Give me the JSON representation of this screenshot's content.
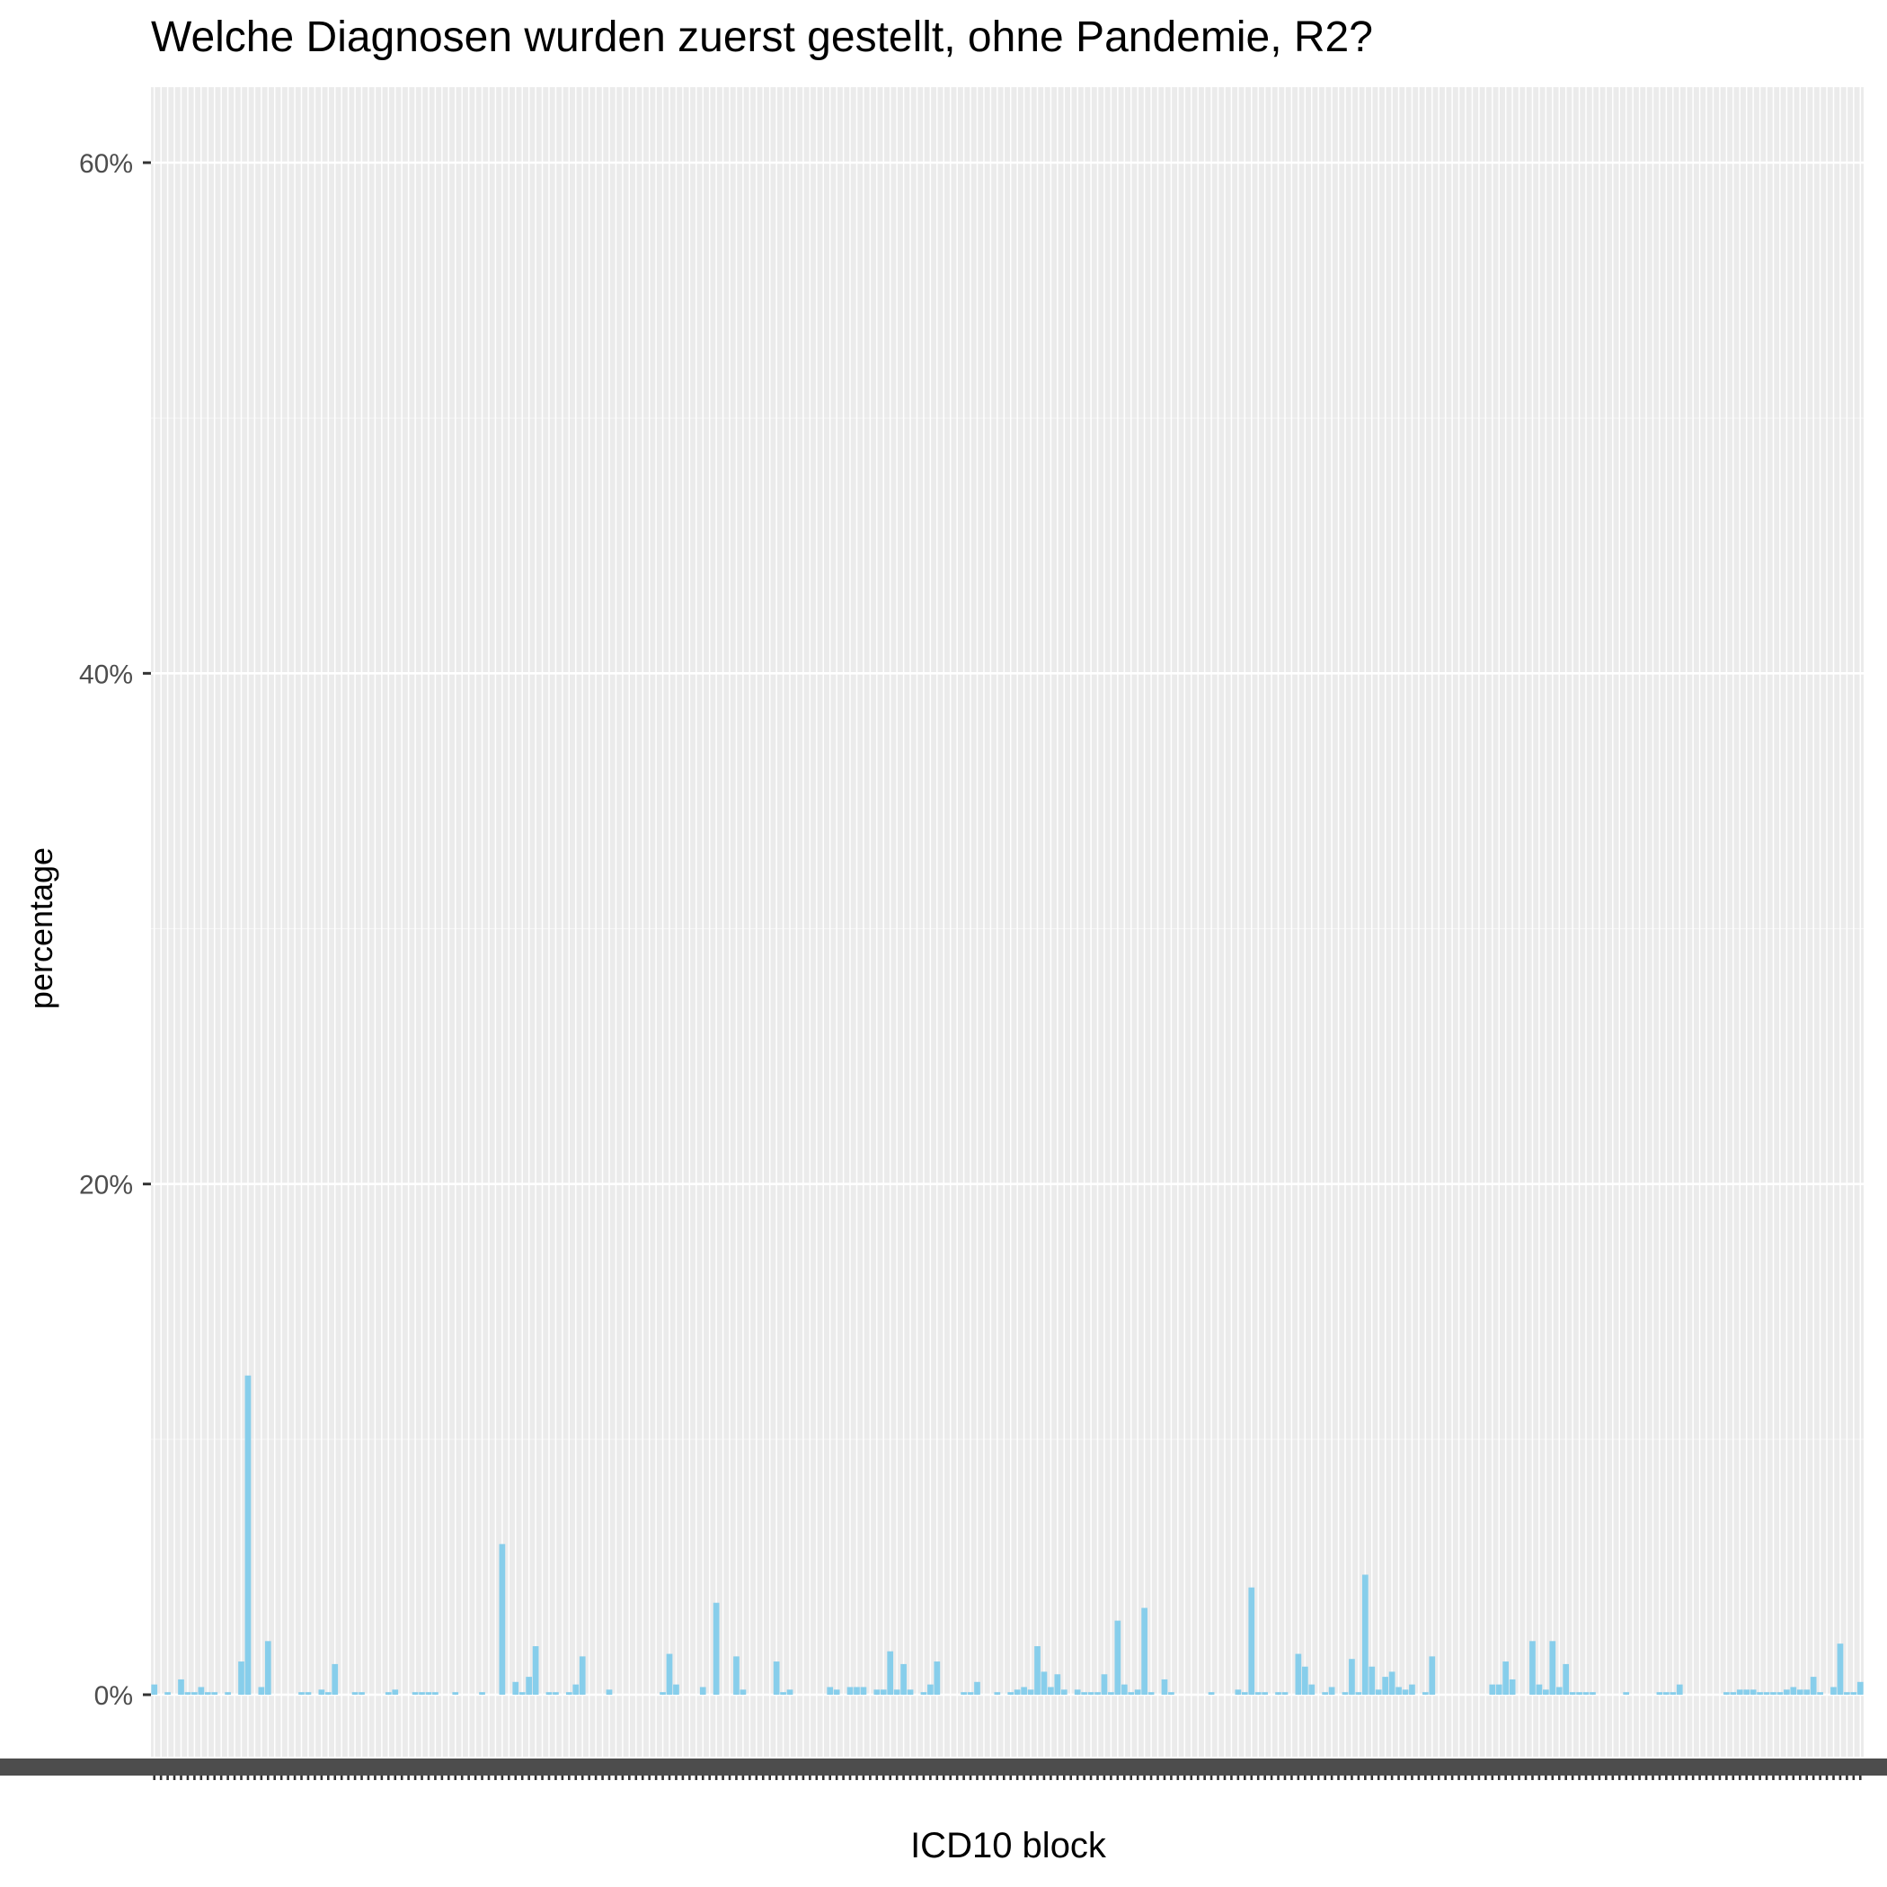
{
  "chart_data": {
    "type": "bar",
    "title": "Welche Diagnosen wurden zuerst gestellt, ohne Pandemie, R2?",
    "xlabel": "ICD10 block",
    "ylabel": "percentage",
    "ylim": [
      0,
      0.63
    ],
    "yticks": [
      {
        "value": 0,
        "label": "0%"
      },
      {
        "value": 0.2,
        "label": "20%"
      },
      {
        "value": 0.4,
        "label": "40%"
      },
      {
        "value": 0.6,
        "label": "60%"
      }
    ],
    "grid": true,
    "bar_color": "#87ceeb",
    "values": [
      0.004,
      0,
      0.001,
      0,
      0.006,
      0.001,
      0.001,
      0.003,
      0.001,
      0.001,
      0,
      0.001,
      0,
      0.013,
      0.125,
      0,
      0.003,
      0.021,
      0,
      0,
      0,
      0,
      0.001,
      0.001,
      0,
      0.002,
      0.001,
      0.012,
      0,
      0,
      0.001,
      0.001,
      0,
      0,
      0,
      0.001,
      0.002,
      0,
      0,
      0.001,
      0.001,
      0.001,
      0.001,
      0,
      0,
      0.001,
      0,
      0,
      0,
      0.001,
      0,
      0,
      0.059,
      0,
      0.005,
      0.001,
      0.007,
      0.019,
      0,
      0.001,
      0.001,
      0,
      0.001,
      0.004,
      0.015,
      0,
      0,
      0,
      0.002,
      0,
      0,
      0,
      0,
      0,
      0,
      0,
      0.001,
      0.016,
      0.004,
      0,
      0,
      0,
      0.003,
      0,
      0.036,
      0,
      0,
      0.015,
      0.002,
      0,
      0,
      0,
      0,
      0.013,
      0.001,
      0.002,
      0,
      0,
      0,
      0,
      0,
      0.003,
      0.002,
      0,
      0.003,
      0.003,
      0.003,
      0,
      0.002,
      0.002,
      0.017,
      0.002,
      0.012,
      0.002,
      0,
      0.001,
      0.004,
      0.013,
      0,
      0,
      0,
      0.001,
      0.001,
      0.005,
      0,
      0,
      0.001,
      0,
      0.001,
      0.002,
      0.003,
      0.002,
      0.019,
      0.009,
      0.003,
      0.008,
      0.002,
      0,
      0.002,
      0.001,
      0.001,
      0.001,
      0.008,
      0.001,
      0.029,
      0.004,
      0.001,
      0.002,
      0.034,
      0.001,
      0,
      0.006,
      0.001,
      0,
      0,
      0,
      0,
      0,
      0.001,
      0,
      0,
      0,
      0.002,
      0.001,
      0.042,
      0.001,
      0.001,
      0,
      0.001,
      0.001,
      0,
      0.016,
      0.011,
      0.004,
      0,
      0.001,
      0.003,
      0,
      0.001,
      0.014,
      0.001,
      0.047,
      0.011,
      0.002,
      0.007,
      0.009,
      0.003,
      0.002,
      0.004,
      0,
      0.001,
      0.015,
      0,
      0,
      0,
      0,
      0,
      0,
      0,
      0,
      0.004,
      0.004,
      0.013,
      0.006,
      0,
      0,
      0.021,
      0.004,
      0.002,
      0.021,
      0.003,
      0.012,
      0.001,
      0.001,
      0.001,
      0.001,
      0,
      0,
      0,
      0,
      0.001,
      0,
      0,
      0,
      0,
      0.001,
      0.001,
      0.001,
      0.004,
      0,
      0,
      0,
      0,
      0,
      0,
      0.001,
      0.001,
      0.002,
      0.002,
      0.002,
      0.001,
      0.001,
      0.001,
      0.001,
      0.002,
      0.003,
      0.002,
      0.002,
      0.007,
      0.001,
      0,
      0.003,
      0.02,
      0.001,
      0.001,
      0.005
    ]
  }
}
